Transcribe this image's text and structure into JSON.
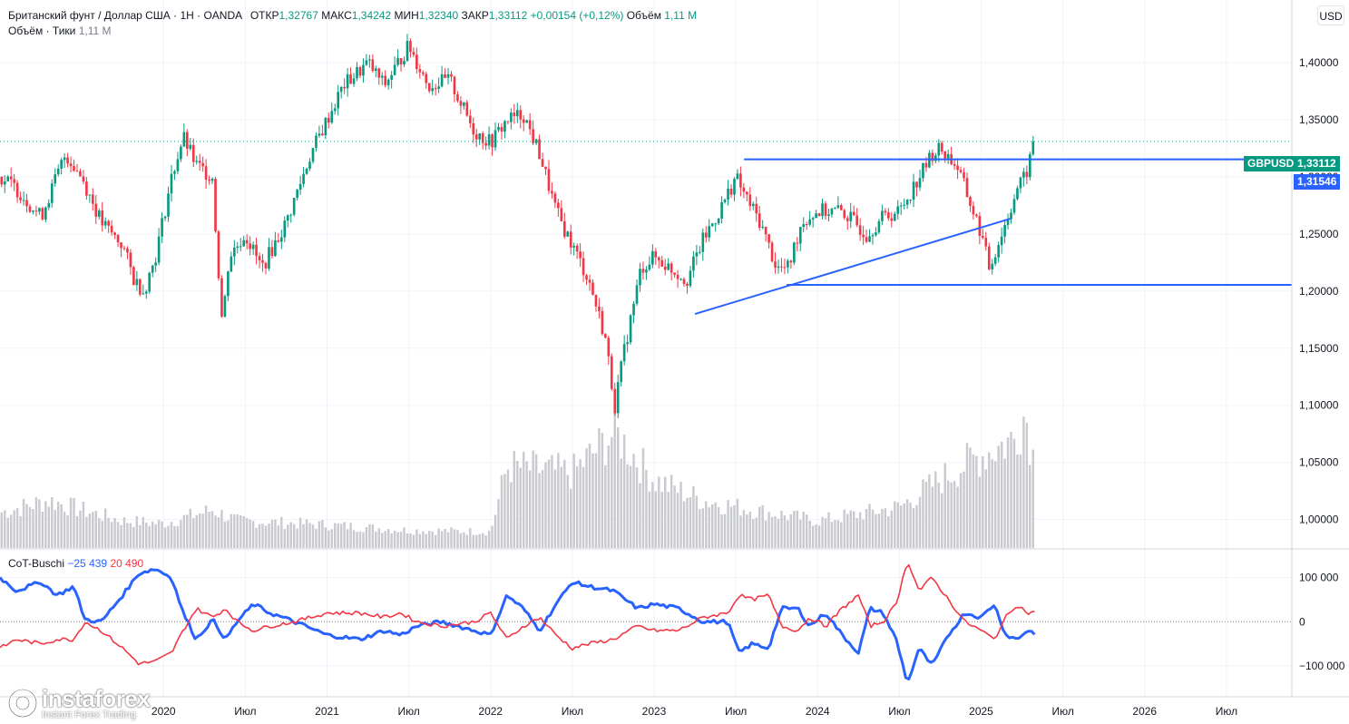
{
  "header": {
    "symbol_line": "Британский фунт / Доллар США · 1Н · OANDA",
    "open_label": "ОТКР",
    "open": "1,32767",
    "high_label": "МАКС",
    "high": "1,34242",
    "low_label": "МИН",
    "low": "1,32340",
    "close_label": "ЗАКР",
    "close": "1,33112",
    "change": "+0,00154 (+0,12%)",
    "volume_label": "Объём",
    "volume": "1,11 M",
    "volume_indicator_label": "Объём · Тики",
    "volume_indicator_value": "1,11 M"
  },
  "currency_button": "USD",
  "cot": {
    "label": "CoT-Buschi",
    "blue_value": "−25 439",
    "red_value": "20 490"
  },
  "price_tags": {
    "symbol_name": "GBPUSD",
    "last_price": "1,33112",
    "level_price": "1,31546"
  },
  "logo": {
    "name": "instaforex",
    "tagline": "Instant Forex Trading"
  },
  "colors": {
    "up": "#089981",
    "down": "#f23645",
    "line": "#2962ff",
    "cot_blue": "#2962ff",
    "cot_red": "#f23645",
    "volume": "#c9cacf"
  },
  "chart_data": [
    {
      "type": "candlestick",
      "title": "Британский фунт / Доллар США",
      "timeframe": "1Н",
      "price_axis": {
        "ticks": [
          1.4,
          1.35,
          1.3,
          1.25,
          1.2,
          1.15,
          1.1,
          1.05,
          1.0
        ],
        "tick_labels": [
          "1,40000",
          "1,35000",
          "1,30000",
          "1,25000",
          "1,20000",
          "1,15000",
          "1,10000",
          "1,05000",
          "1,00000"
        ],
        "range": [
          0.975,
          1.455
        ]
      },
      "time_axis": {
        "range": [
          2019.0,
          2026.9
        ],
        "ticks": [
          2020.0,
          2020.5,
          2021.0,
          2021.5,
          2022.0,
          2022.5,
          2023.0,
          2023.5,
          2024.0,
          2024.5,
          2025.0,
          2025.5,
          2026.0,
          2026.5
        ],
        "tick_labels": [
          "2020",
          "Июл",
          "2021",
          "Июл",
          "2022",
          "Июл",
          "2023",
          "Июл",
          "2024",
          "Июл",
          "2025",
          "Июл",
          "2026",
          "Июл"
        ]
      },
      "price_path": [
        [
          2019.0,
          1.3
        ],
        [
          2019.1,
          1.29
        ],
        [
          2019.25,
          1.265
        ],
        [
          2019.4,
          1.32
        ],
        [
          2019.5,
          1.3
        ],
        [
          2019.62,
          1.26
        ],
        [
          2019.75,
          1.24
        ],
        [
          2019.82,
          1.21
        ],
        [
          2019.88,
          1.2
        ],
        [
          2019.95,
          1.23
        ],
        [
          2020.05,
          1.3
        ],
        [
          2020.12,
          1.335
        ],
        [
          2020.2,
          1.31
        ],
        [
          2020.3,
          1.3
        ],
        [
          2020.32,
          1.25
        ],
        [
          2020.36,
          1.17
        ],
        [
          2020.4,
          1.23
        ],
        [
          2020.5,
          1.25
        ],
        [
          2020.6,
          1.22
        ],
        [
          2020.75,
          1.26
        ],
        [
          2020.9,
          1.32
        ],
        [
          2021.0,
          1.35
        ],
        [
          2021.1,
          1.38
        ],
        [
          2021.25,
          1.4
        ],
        [
          2021.35,
          1.38
        ],
        [
          2021.5,
          1.415
        ],
        [
          2021.62,
          1.38
        ],
        [
          2021.75,
          1.385
        ],
        [
          2021.9,
          1.34
        ],
        [
          2022.0,
          1.33
        ],
        [
          2022.1,
          1.35
        ],
        [
          2022.2,
          1.355
        ],
        [
          2022.3,
          1.32
        ],
        [
          2022.4,
          1.27
        ],
        [
          2022.5,
          1.24
        ],
        [
          2022.6,
          1.21
        ],
        [
          2022.7,
          1.16
        ],
        [
          2022.76,
          1.1
        ],
        [
          2022.82,
          1.15
        ],
        [
          2022.92,
          1.22
        ],
        [
          2023.0,
          1.23
        ],
        [
          2023.1,
          1.22
        ],
        [
          2023.2,
          1.21
        ],
        [
          2023.3,
          1.245
        ],
        [
          2023.4,
          1.27
        ],
        [
          2023.5,
          1.3
        ],
        [
          2023.55,
          1.285
        ],
        [
          2023.65,
          1.26
        ],
        [
          2023.75,
          1.22
        ],
        [
          2023.82,
          1.22
        ],
        [
          2023.9,
          1.26
        ],
        [
          2024.0,
          1.27
        ],
        [
          2024.15,
          1.27
        ],
        [
          2024.3,
          1.25
        ],
        [
          2024.4,
          1.265
        ],
        [
          2024.5,
          1.27
        ],
        [
          2024.6,
          1.295
        ],
        [
          2024.7,
          1.32
        ],
        [
          2024.75,
          1.325
        ],
        [
          2024.85,
          1.31
        ],
        [
          2024.95,
          1.27
        ],
        [
          2025.0,
          1.25
        ],
        [
          2025.05,
          1.22
        ],
        [
          2025.1,
          1.24
        ],
        [
          2025.15,
          1.26
        ],
        [
          2025.22,
          1.29
        ],
        [
          2025.27,
          1.3
        ],
        [
          2025.33,
          1.331
        ]
      ],
      "last_price": 1.33112,
      "horizontal_levels": [
        {
          "price": 1.31546,
          "from": 2023.55,
          "to": 2026.9
        },
        {
          "price": 1.2055,
          "from": 2023.81,
          "to": 2026.9
        }
      ],
      "trend_line": {
        "from": [
          2023.25,
          1.18
        ],
        "to": [
          2025.18,
          1.2635
        ]
      },
      "volume": {
        "profile": [
          [
            2019.0,
            0.26
          ],
          [
            2019.3,
            0.35
          ],
          [
            2019.5,
            0.28
          ],
          [
            2019.75,
            0.2
          ],
          [
            2020.0,
            0.18
          ],
          [
            2020.3,
            0.28
          ],
          [
            2020.45,
            0.2
          ],
          [
            2021.0,
            0.17
          ],
          [
            2021.5,
            0.13
          ],
          [
            2022.0,
            0.12
          ],
          [
            2022.1,
            0.6
          ],
          [
            2022.5,
            0.55
          ],
          [
            2022.76,
            0.85
          ],
          [
            2023.0,
            0.5
          ],
          [
            2023.3,
            0.35
          ],
          [
            2023.6,
            0.28
          ],
          [
            2024.0,
            0.2
          ],
          [
            2024.5,
            0.3
          ],
          [
            2024.75,
            0.5
          ],
          [
            2024.95,
            0.65
          ],
          [
            2025.2,
            0.8
          ],
          [
            2025.27,
            1.0
          ],
          [
            2025.33,
            0.6
          ]
        ]
      }
    },
    {
      "type": "line",
      "title": "CoT-Buschi",
      "y_axis": {
        "ticks": [
          100000,
          0,
          -100000
        ],
        "tick_labels": [
          "100 000",
          "0",
          "−100 000"
        ],
        "range": [
          -170000,
          165000
        ]
      },
      "series": [
        {
          "name": "CoT-Buschi blue",
          "color": "#2962ff",
          "points": [
            [
              2019.0,
              100000
            ],
            [
              2019.1,
              70000
            ],
            [
              2019.25,
              90000
            ],
            [
              2019.35,
              60000
            ],
            [
              2019.45,
              80000
            ],
            [
              2019.52,
              5000
            ],
            [
              2019.62,
              0
            ],
            [
              2019.75,
              60000
            ],
            [
              2019.85,
              110000
            ],
            [
              2019.95,
              120000
            ],
            [
              2020.05,
              100000
            ],
            [
              2020.12,
              20000
            ],
            [
              2020.2,
              -40000
            ],
            [
              2020.3,
              5000
            ],
            [
              2020.38,
              -40000
            ],
            [
              2020.45,
              0
            ],
            [
              2020.55,
              40000
            ],
            [
              2020.65,
              20000
            ],
            [
              2020.8,
              0
            ],
            [
              2021.0,
              -30000
            ],
            [
              2021.2,
              -40000
            ],
            [
              2021.35,
              -20000
            ],
            [
              2021.45,
              -30000
            ],
            [
              2021.55,
              -10000
            ],
            [
              2021.7,
              0
            ],
            [
              2021.9,
              -20000
            ],
            [
              2022.0,
              -30000
            ],
            [
              2022.1,
              60000
            ],
            [
              2022.2,
              30000
            ],
            [
              2022.3,
              -20000
            ],
            [
              2022.4,
              40000
            ],
            [
              2022.5,
              90000
            ],
            [
              2022.6,
              80000
            ],
            [
              2022.75,
              70000
            ],
            [
              2022.9,
              30000
            ],
            [
              2023.0,
              40000
            ],
            [
              2023.15,
              30000
            ],
            [
              2023.3,
              0
            ],
            [
              2023.45,
              0
            ],
            [
              2023.52,
              -70000
            ],
            [
              2023.6,
              -50000
            ],
            [
              2023.7,
              -60000
            ],
            [
              2023.78,
              30000
            ],
            [
              2023.88,
              30000
            ],
            [
              2023.95,
              -10000
            ],
            [
              2024.05,
              20000
            ],
            [
              2024.15,
              -30000
            ],
            [
              2024.25,
              -70000
            ],
            [
              2024.32,
              30000
            ],
            [
              2024.4,
              20000
            ],
            [
              2024.48,
              -40000
            ],
            [
              2024.55,
              -140000
            ],
            [
              2024.62,
              -60000
            ],
            [
              2024.7,
              -100000
            ],
            [
              2024.8,
              -30000
            ],
            [
              2024.9,
              20000
            ],
            [
              2025.0,
              10000
            ],
            [
              2025.08,
              40000
            ],
            [
              2025.15,
              -30000
            ],
            [
              2025.22,
              -40000
            ],
            [
              2025.28,
              -20000
            ],
            [
              2025.33,
              -25439
            ]
          ]
        },
        {
          "name": "CoT-Buschi red",
          "color": "#f23645",
          "points": [
            [
              2019.0,
              -60000
            ],
            [
              2019.1,
              -40000
            ],
            [
              2019.25,
              -50000
            ],
            [
              2019.35,
              -40000
            ],
            [
              2019.45,
              -40000
            ],
            [
              2019.52,
              0
            ],
            [
              2019.62,
              -20000
            ],
            [
              2019.75,
              -60000
            ],
            [
              2019.85,
              -95000
            ],
            [
              2019.95,
              -90000
            ],
            [
              2020.05,
              -70000
            ],
            [
              2020.12,
              -20000
            ],
            [
              2020.2,
              30000
            ],
            [
              2020.3,
              10000
            ],
            [
              2020.38,
              30000
            ],
            [
              2020.45,
              0
            ],
            [
              2020.55,
              -20000
            ],
            [
              2020.65,
              -10000
            ],
            [
              2020.8,
              0
            ],
            [
              2021.0,
              20000
            ],
            [
              2021.2,
              20000
            ],
            [
              2021.35,
              10000
            ],
            [
              2021.45,
              20000
            ],
            [
              2021.55,
              0
            ],
            [
              2021.7,
              -10000
            ],
            [
              2021.9,
              0
            ],
            [
              2022.0,
              20000
            ],
            [
              2022.1,
              -40000
            ],
            [
              2022.2,
              -10000
            ],
            [
              2022.3,
              10000
            ],
            [
              2022.4,
              -30000
            ],
            [
              2022.5,
              -60000
            ],
            [
              2022.6,
              -50000
            ],
            [
              2022.75,
              -40000
            ],
            [
              2022.9,
              -10000
            ],
            [
              2023.0,
              -20000
            ],
            [
              2023.15,
              -20000
            ],
            [
              2023.3,
              10000
            ],
            [
              2023.45,
              20000
            ],
            [
              2023.52,
              60000
            ],
            [
              2023.6,
              50000
            ],
            [
              2023.7,
              60000
            ],
            [
              2023.78,
              -10000
            ],
            [
              2023.88,
              -20000
            ],
            [
              2023.95,
              10000
            ],
            [
              2024.05,
              -10000
            ],
            [
              2024.15,
              30000
            ],
            [
              2024.25,
              60000
            ],
            [
              2024.32,
              -10000
            ],
            [
              2024.4,
              0
            ],
            [
              2024.48,
              40000
            ],
            [
              2024.55,
              140000
            ],
            [
              2024.62,
              70000
            ],
            [
              2024.7,
              100000
            ],
            [
              2024.8,
              50000
            ],
            [
              2024.9,
              0
            ],
            [
              2025.0,
              -20000
            ],
            [
              2025.08,
              -40000
            ],
            [
              2025.15,
              10000
            ],
            [
              2025.22,
              40000
            ],
            [
              2025.28,
              20000
            ],
            [
              2025.33,
              20490
            ]
          ]
        }
      ]
    }
  ]
}
